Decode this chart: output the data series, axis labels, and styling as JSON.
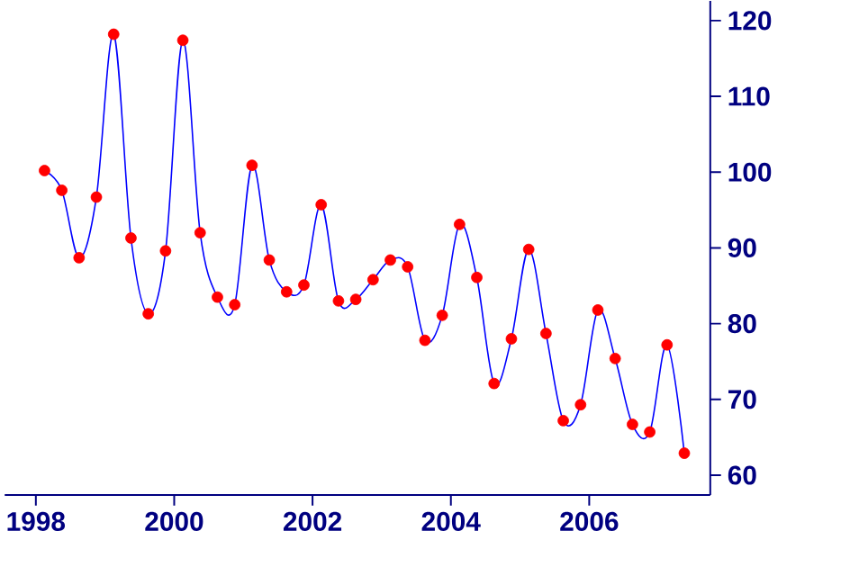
{
  "chart_data": {
    "type": "line",
    "x": [
      1998.125,
      1998.375,
      1998.625,
      1998.875,
      1999.125,
      1999.375,
      1999.625,
      1999.875,
      2000.125,
      2000.375,
      2000.625,
      2000.875,
      2001.125,
      2001.375,
      2001.625,
      2001.875,
      2002.125,
      2002.375,
      2002.625,
      2002.875,
      2003.125,
      2003.375,
      2003.625,
      2003.875,
      2004.125,
      2004.375,
      2004.625,
      2004.875,
      2005.125,
      2005.375,
      2005.625,
      2005.875,
      2006.125,
      2006.375,
      2006.625,
      2006.875,
      2007.125,
      2007.375
    ],
    "series": [
      {
        "color": "#0000ff",
        "marker": "none",
        "values": [
          100.2,
          97.6,
          88.7,
          96.7,
          118.2,
          91.3,
          81.3,
          89.6,
          117.4,
          92.0,
          83.5,
          82.5,
          100.9,
          88.4,
          84.2,
          85.1,
          95.7,
          83.0,
          83.2,
          85.8,
          88.4,
          87.5,
          77.8,
          81.1,
          93.1,
          86.1,
          72.1,
          78.0,
          89.8,
          78.7,
          67.2,
          69.3,
          81.8,
          75.4,
          66.7,
          65.7,
          77.2,
          62.9
        ]
      },
      {
        "type": "scatter",
        "color": "#ff0000",
        "marker": "circle",
        "values": [
          100.2,
          97.6,
          88.7,
          96.7,
          118.2,
          91.3,
          81.3,
          89.6,
          117.4,
          92.0,
          83.5,
          82.5,
          100.9,
          88.4,
          84.2,
          85.1,
          95.7,
          83.0,
          83.2,
          85.8,
          88.4,
          87.5,
          77.8,
          81.1,
          93.1,
          86.1,
          72.1,
          78.0,
          89.8,
          78.7,
          67.2,
          69.3,
          81.8,
          75.4,
          66.7,
          65.7,
          77.2,
          62.9
        ]
      }
    ],
    "xlim": [
      1997.55,
      2007.75
    ],
    "ylim": [
      57.4,
      122.6
    ],
    "xticks": [
      1998,
      2000,
      2002,
      2004,
      2006
    ],
    "yticks": [
      60,
      70,
      80,
      90,
      100,
      110,
      120
    ],
    "grid": false
  }
}
